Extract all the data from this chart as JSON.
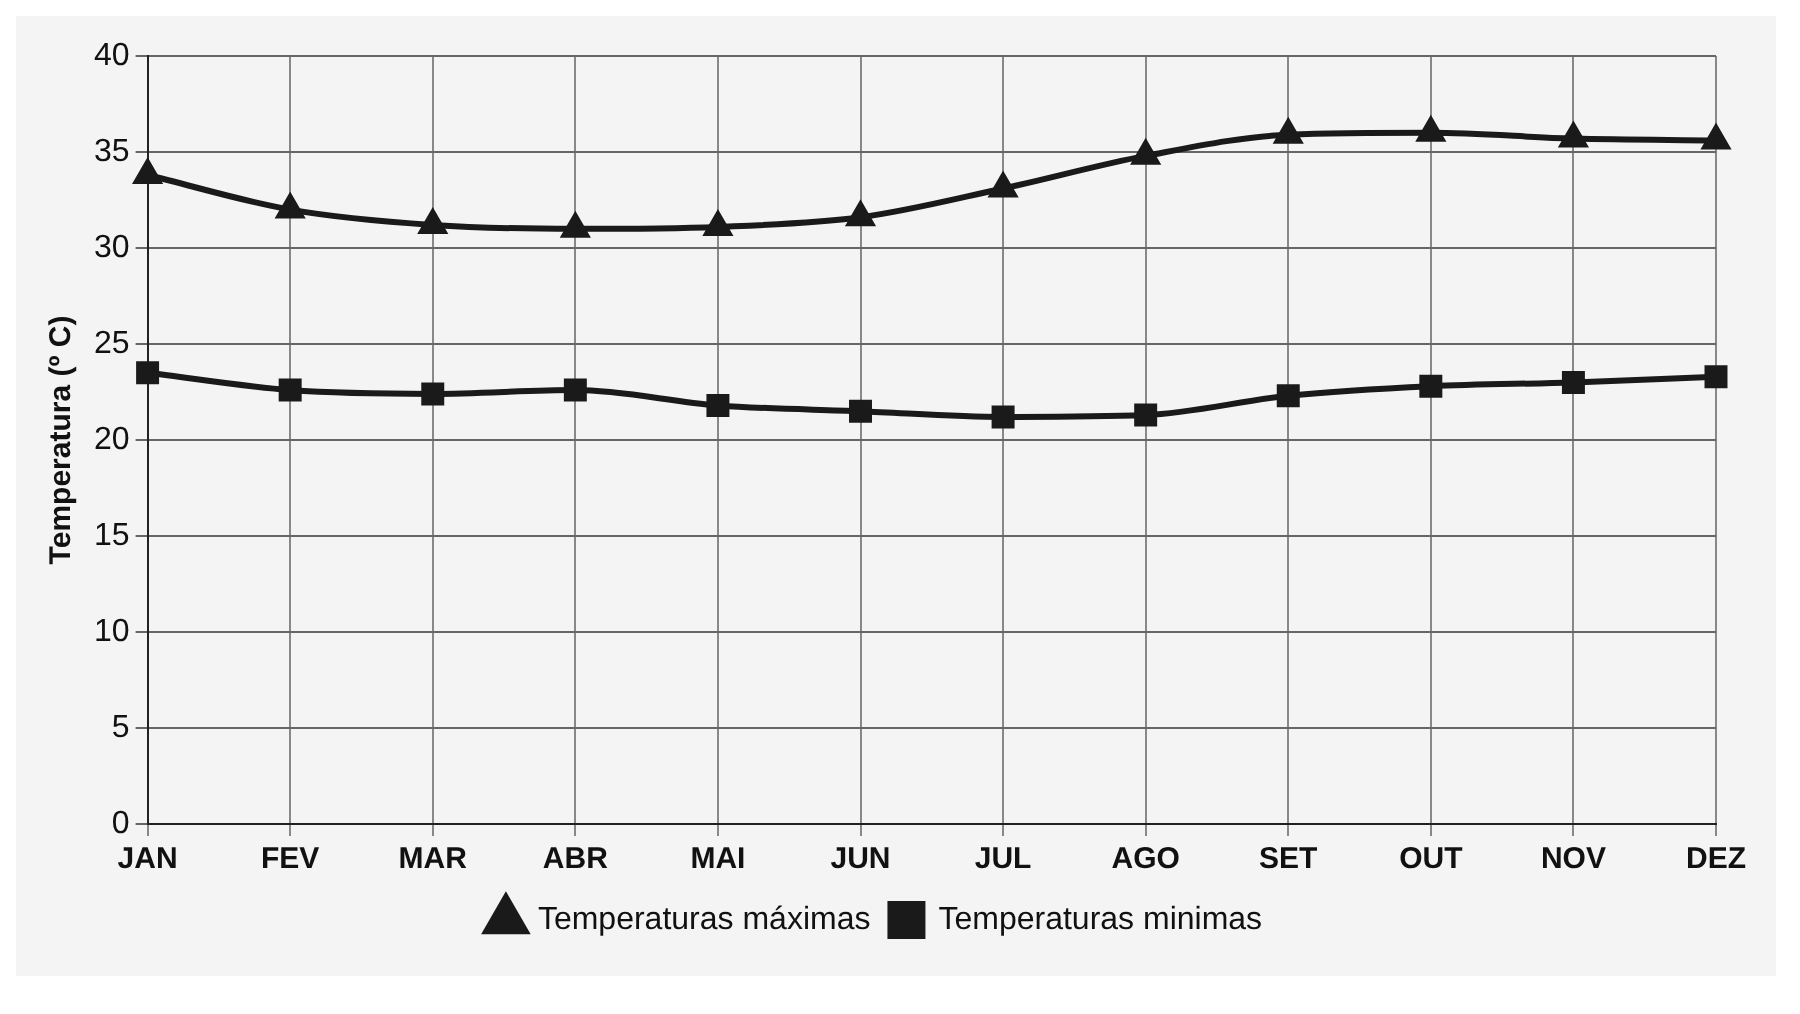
{
  "chart_data": {
    "type": "line",
    "ylabel": "Temperatura (º C)",
    "categories": [
      "JAN",
      "FEV",
      "MAR",
      "ABR",
      "MAI",
      "JUN",
      "JUL",
      "AGO",
      "SET",
      "OUT",
      "NOV",
      "DEZ"
    ],
    "series": [
      {
        "name": "Temperaturas máximas",
        "color": "#1a1a1a",
        "marker": "triangle",
        "values": [
          33.8,
          32.0,
          31.2,
          31.0,
          31.1,
          31.6,
          33.1,
          34.8,
          35.9,
          36.0,
          35.7,
          35.6
        ]
      },
      {
        "name": "Temperaturas minimas",
        "color": "#1a1a1a",
        "marker": "square",
        "values": [
          23.5,
          22.6,
          22.4,
          22.6,
          21.8,
          21.5,
          21.2,
          21.3,
          22.3,
          22.8,
          23.0,
          23.3
        ]
      }
    ],
    "ylim": [
      0,
      40
    ],
    "yticks": [
      0,
      5,
      10,
      15,
      20,
      25,
      30,
      35,
      40
    ],
    "grid": true,
    "legend": "bottom"
  }
}
